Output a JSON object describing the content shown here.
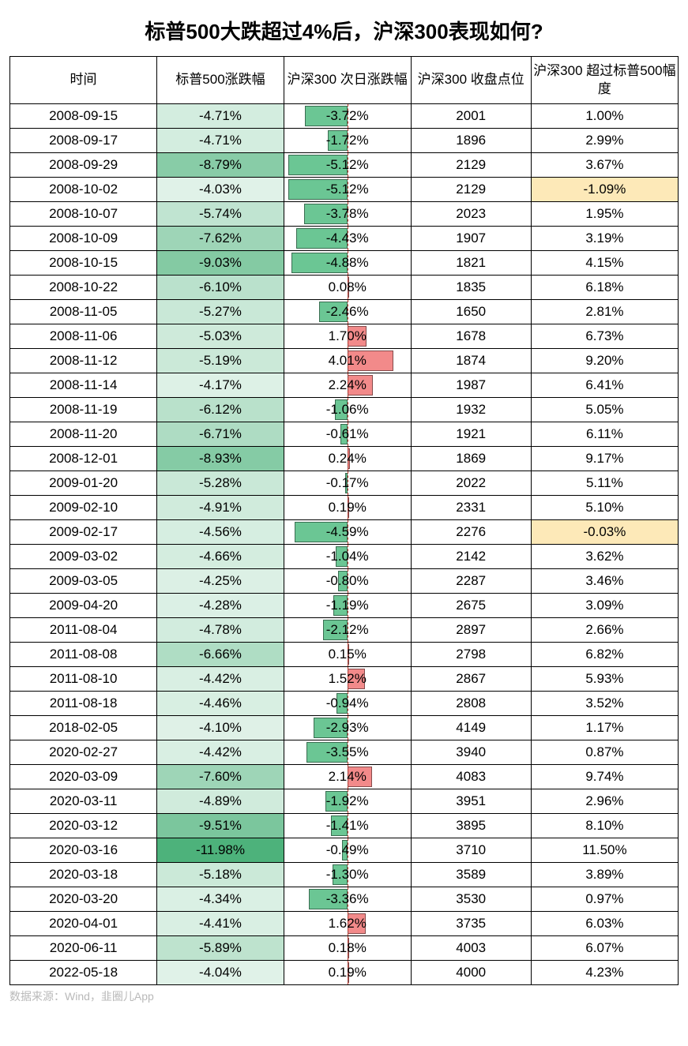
{
  "title": "标普500大跌超过4%后，沪深300表现如何?",
  "source": "数据来源：Wind，韭圈儿App",
  "columns": [
    "时间",
    "标普500涨跌幅",
    "沪深300\n次日涨跌幅",
    "沪深300\n收盘点位",
    "沪深300\n超过标普500幅度"
  ],
  "style": {
    "sp500": {
      "min": -11.98,
      "max": -4.03,
      "color_min": "#4db27b",
      "color_max": "#e0f2e8",
      "text_color": "#000"
    },
    "csi_bar": {
      "domain": 5.5,
      "neg_color": "#6bc694",
      "pos_color": "#f28a8a",
      "bordered": true
    },
    "excess": {
      "neg_bg": "#fde9b8",
      "pos_bg": "transparent"
    },
    "center_line_color": "#c0392b"
  },
  "rows": [
    {
      "date": "2008-09-15",
      "sp": "-4.71%",
      "sp_v": -4.71,
      "csi": "-3.72%",
      "csi_v": -3.72,
      "close": "2001",
      "ex": "1.00%",
      "ex_neg": false
    },
    {
      "date": "2008-09-17",
      "sp": "-4.71%",
      "sp_v": -4.71,
      "csi": "-1.72%",
      "csi_v": -1.72,
      "close": "1896",
      "ex": "2.99%",
      "ex_neg": false
    },
    {
      "date": "2008-09-29",
      "sp": "-8.79%",
      "sp_v": -8.79,
      "csi": "-5.12%",
      "csi_v": -5.12,
      "close": "2129",
      "ex": "3.67%",
      "ex_neg": false
    },
    {
      "date": "2008-10-02",
      "sp": "-4.03%",
      "sp_v": -4.03,
      "csi": "-5.12%",
      "csi_v": -5.12,
      "close": "2129",
      "ex": "-1.09%",
      "ex_neg": true
    },
    {
      "date": "2008-10-07",
      "sp": "-5.74%",
      "sp_v": -5.74,
      "csi": "-3.78%",
      "csi_v": -3.78,
      "close": "2023",
      "ex": "1.95%",
      "ex_neg": false
    },
    {
      "date": "2008-10-09",
      "sp": "-7.62%",
      "sp_v": -7.62,
      "csi": "-4.43%",
      "csi_v": -4.43,
      "close": "1907",
      "ex": "3.19%",
      "ex_neg": false
    },
    {
      "date": "2008-10-15",
      "sp": "-9.03%",
      "sp_v": -9.03,
      "csi": "-4.88%",
      "csi_v": -4.88,
      "close": "1821",
      "ex": "4.15%",
      "ex_neg": false
    },
    {
      "date": "2008-10-22",
      "sp": "-6.10%",
      "sp_v": -6.1,
      "csi": "0.08%",
      "csi_v": 0.08,
      "close": "1835",
      "ex": "6.18%",
      "ex_neg": false
    },
    {
      "date": "2008-11-05",
      "sp": "-5.27%",
      "sp_v": -5.27,
      "csi": "-2.46%",
      "csi_v": -2.46,
      "close": "1650",
      "ex": "2.81%",
      "ex_neg": false
    },
    {
      "date": "2008-11-06",
      "sp": "-5.03%",
      "sp_v": -5.03,
      "csi": "1.70%",
      "csi_v": 1.7,
      "close": "1678",
      "ex": "6.73%",
      "ex_neg": false
    },
    {
      "date": "2008-11-12",
      "sp": "-5.19%",
      "sp_v": -5.19,
      "csi": "4.01%",
      "csi_v": 4.01,
      "close": "1874",
      "ex": "9.20%",
      "ex_neg": false
    },
    {
      "date": "2008-11-14",
      "sp": "-4.17%",
      "sp_v": -4.17,
      "csi": "2.24%",
      "csi_v": 2.24,
      "close": "1987",
      "ex": "6.41%",
      "ex_neg": false
    },
    {
      "date": "2008-11-19",
      "sp": "-6.12%",
      "sp_v": -6.12,
      "csi": "-1.06%",
      "csi_v": -1.06,
      "close": "1932",
      "ex": "5.05%",
      "ex_neg": false
    },
    {
      "date": "2008-11-20",
      "sp": "-6.71%",
      "sp_v": -6.71,
      "csi": "-0.61%",
      "csi_v": -0.61,
      "close": "1921",
      "ex": "6.11%",
      "ex_neg": false
    },
    {
      "date": "2008-12-01",
      "sp": "-8.93%",
      "sp_v": -8.93,
      "csi": "0.24%",
      "csi_v": 0.24,
      "close": "1869",
      "ex": "9.17%",
      "ex_neg": false
    },
    {
      "date": "2009-01-20",
      "sp": "-5.28%",
      "sp_v": -5.28,
      "csi": "-0.17%",
      "csi_v": -0.17,
      "close": "2022",
      "ex": "5.11%",
      "ex_neg": false
    },
    {
      "date": "2009-02-10",
      "sp": "-4.91%",
      "sp_v": -4.91,
      "csi": "0.19%",
      "csi_v": 0.19,
      "close": "2331",
      "ex": "5.10%",
      "ex_neg": false
    },
    {
      "date": "2009-02-17",
      "sp": "-4.56%",
      "sp_v": -4.56,
      "csi": "-4.59%",
      "csi_v": -4.59,
      "close": "2276",
      "ex": "-0.03%",
      "ex_neg": true
    },
    {
      "date": "2009-03-02",
      "sp": "-4.66%",
      "sp_v": -4.66,
      "csi": "-1.04%",
      "csi_v": -1.04,
      "close": "2142",
      "ex": "3.62%",
      "ex_neg": false
    },
    {
      "date": "2009-03-05",
      "sp": "-4.25%",
      "sp_v": -4.25,
      "csi": "-0.80%",
      "csi_v": -0.8,
      "close": "2287",
      "ex": "3.46%",
      "ex_neg": false
    },
    {
      "date": "2009-04-20",
      "sp": "-4.28%",
      "sp_v": -4.28,
      "csi": "-1.19%",
      "csi_v": -1.19,
      "close": "2675",
      "ex": "3.09%",
      "ex_neg": false
    },
    {
      "date": "2011-08-04",
      "sp": "-4.78%",
      "sp_v": -4.78,
      "csi": "-2.12%",
      "csi_v": -2.12,
      "close": "2897",
      "ex": "2.66%",
      "ex_neg": false
    },
    {
      "date": "2011-08-08",
      "sp": "-6.66%",
      "sp_v": -6.66,
      "csi": "0.15%",
      "csi_v": 0.15,
      "close": "2798",
      "ex": "6.82%",
      "ex_neg": false
    },
    {
      "date": "2011-08-10",
      "sp": "-4.42%",
      "sp_v": -4.42,
      "csi": "1.52%",
      "csi_v": 1.52,
      "close": "2867",
      "ex": "5.93%",
      "ex_neg": false
    },
    {
      "date": "2011-08-18",
      "sp": "-4.46%",
      "sp_v": -4.46,
      "csi": "-0.94%",
      "csi_v": -0.94,
      "close": "2808",
      "ex": "3.52%",
      "ex_neg": false
    },
    {
      "date": "2018-02-05",
      "sp": "-4.10%",
      "sp_v": -4.1,
      "csi": "-2.93%",
      "csi_v": -2.93,
      "close": "4149",
      "ex": "1.17%",
      "ex_neg": false
    },
    {
      "date": "2020-02-27",
      "sp": "-4.42%",
      "sp_v": -4.42,
      "csi": "-3.55%",
      "csi_v": -3.55,
      "close": "3940",
      "ex": "0.87%",
      "ex_neg": false
    },
    {
      "date": "2020-03-09",
      "sp": "-7.60%",
      "sp_v": -7.6,
      "csi": "2.14%",
      "csi_v": 2.14,
      "close": "4083",
      "ex": "9.74%",
      "ex_neg": false
    },
    {
      "date": "2020-03-11",
      "sp": "-4.89%",
      "sp_v": -4.89,
      "csi": "-1.92%",
      "csi_v": -1.92,
      "close": "3951",
      "ex": "2.96%",
      "ex_neg": false
    },
    {
      "date": "2020-03-12",
      "sp": "-9.51%",
      "sp_v": -9.51,
      "csi": "-1.41%",
      "csi_v": -1.41,
      "close": "3895",
      "ex": "8.10%",
      "ex_neg": false
    },
    {
      "date": "2020-03-16",
      "sp": "-11.98%",
      "sp_v": -11.98,
      "csi": "-0.49%",
      "csi_v": -0.49,
      "close": "3710",
      "ex": "11.50%",
      "ex_neg": false
    },
    {
      "date": "2020-03-18",
      "sp": "-5.18%",
      "sp_v": -5.18,
      "csi": "-1.30%",
      "csi_v": -1.3,
      "close": "3589",
      "ex": "3.89%",
      "ex_neg": false
    },
    {
      "date": "2020-03-20",
      "sp": "-4.34%",
      "sp_v": -4.34,
      "csi": "-3.36%",
      "csi_v": -3.36,
      "close": "3530",
      "ex": "0.97%",
      "ex_neg": false
    },
    {
      "date": "2020-04-01",
      "sp": "-4.41%",
      "sp_v": -4.41,
      "csi": "1.62%",
      "csi_v": 1.62,
      "close": "3735",
      "ex": "6.03%",
      "ex_neg": false
    },
    {
      "date": "2020-06-11",
      "sp": "-5.89%",
      "sp_v": -5.89,
      "csi": "0.18%",
      "csi_v": 0.18,
      "close": "4003",
      "ex": "6.07%",
      "ex_neg": false
    },
    {
      "date": "2022-05-18",
      "sp": "-4.04%",
      "sp_v": -4.04,
      "csi": "0.19%",
      "csi_v": 0.19,
      "close": "4000",
      "ex": "4.23%",
      "ex_neg": false
    }
  ]
}
